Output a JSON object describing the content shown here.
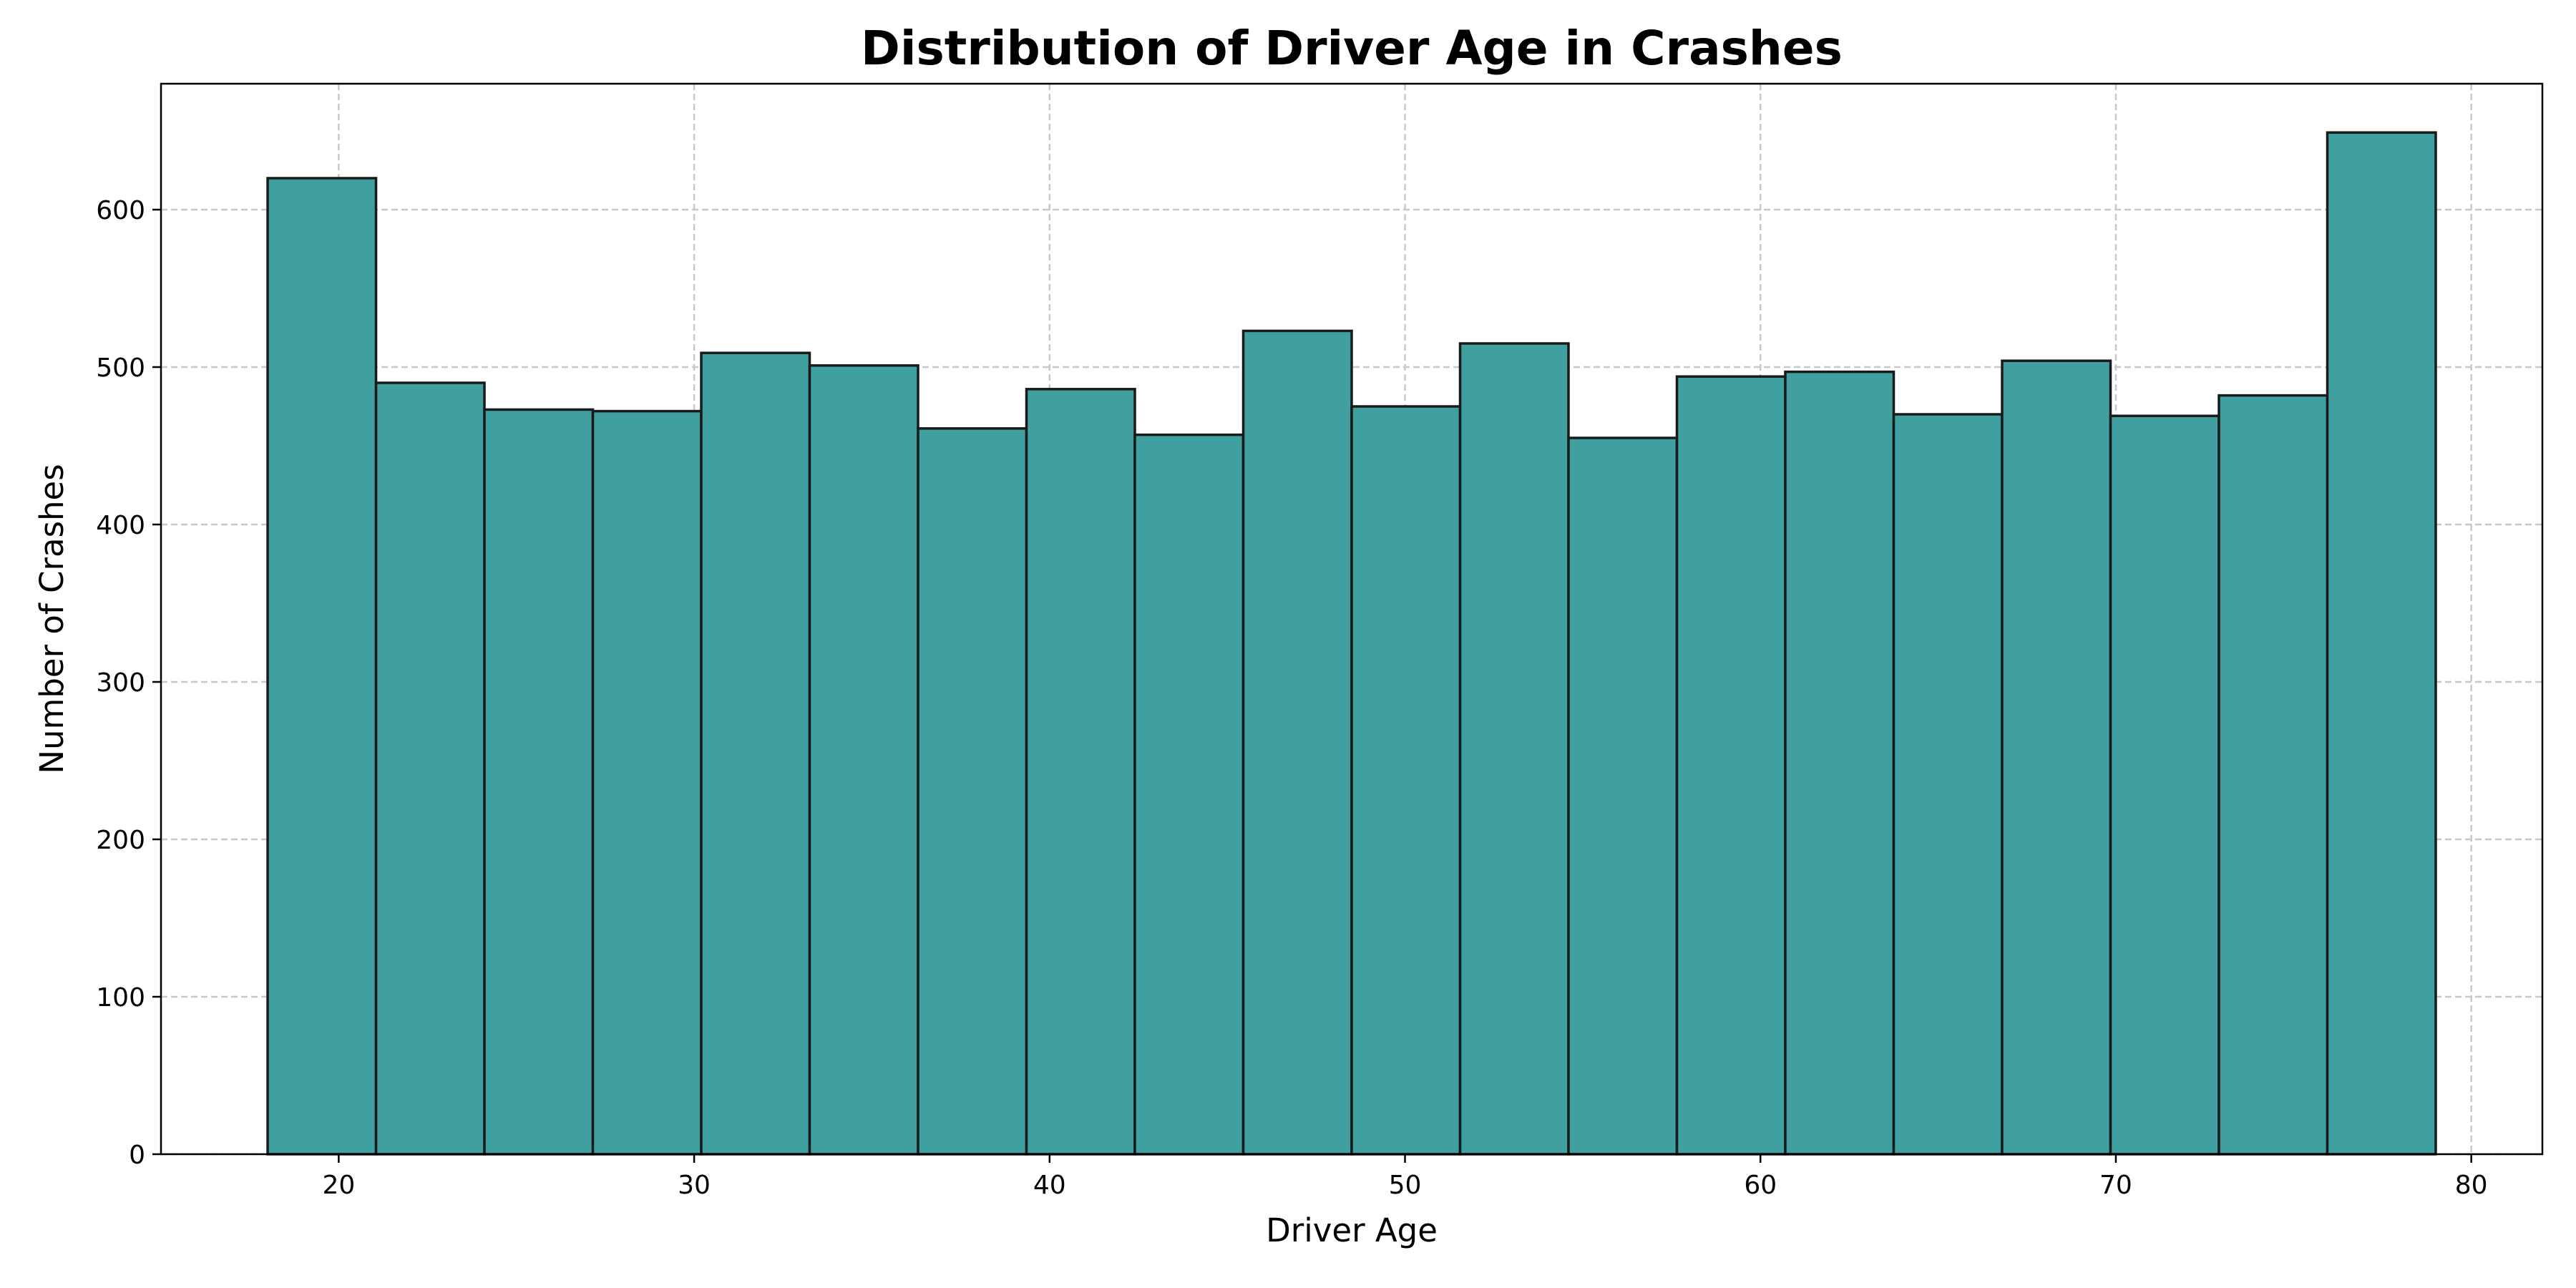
{
  "chart_data": {
    "type": "bar",
    "title": "Distribution of Driver Age in Crashes",
    "xlabel": "Driver Age",
    "ylabel": "Number of Crashes",
    "bin_edges": [
      18,
      21.05,
      24.1,
      27.15,
      30.2,
      33.25,
      36.3,
      39.35,
      42.4,
      45.45,
      48.5,
      51.55,
      54.6,
      57.65,
      60.7,
      63.75,
      66.8,
      69.85,
      72.9,
      75.95,
      79
    ],
    "values": [
      620,
      490,
      473,
      472,
      509,
      501,
      461,
      486,
      457,
      523,
      475,
      515,
      455,
      494,
      497,
      470,
      504,
      469,
      482,
      649
    ],
    "xlim": [
      15,
      82
    ],
    "ylim": [
      0,
      680
    ],
    "x_ticks": [
      20,
      30,
      40,
      50,
      60,
      70,
      80
    ],
    "y_ticks": [
      0,
      100,
      200,
      300,
      400,
      500,
      600
    ],
    "grid": true,
    "bar_color": "#40a0a0",
    "edge_color": "#1a1a1a",
    "grid_color": "#c8c8c8"
  }
}
